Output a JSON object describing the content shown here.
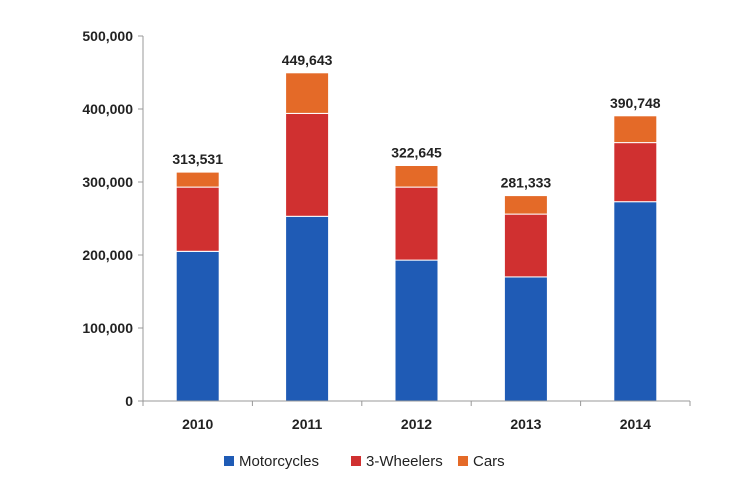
{
  "chart_data": {
    "type": "bar",
    "stacked": true,
    "categories": [
      "2010",
      "2011",
      "2012",
      "2013",
      "2014"
    ],
    "series": [
      {
        "name": "Motorcycles",
        "color": "#1f5bb5",
        "values": [
          205000,
          253000,
          193000,
          170000,
          273000
        ]
      },
      {
        "name": "3-Wheelers",
        "color": "#d03030",
        "values": [
          88000,
          141000,
          100000,
          86000,
          81000
        ]
      },
      {
        "name": "Cars",
        "color": "#e46a28",
        "values": [
          20531,
          55643,
          29645,
          25333,
          36748
        ]
      }
    ],
    "totals": [
      "313,531",
      "449,643",
      "322,645",
      "281,333",
      "390,748"
    ],
    "ylim": [
      0,
      500000
    ],
    "yticks": [
      0,
      100000,
      200000,
      300000,
      400000,
      500000
    ],
    "ytick_labels": [
      "0",
      "100,000",
      "200,000",
      "300,000",
      "400,000",
      "500,000"
    ],
    "grid": false,
    "legend_position": "bottom"
  }
}
